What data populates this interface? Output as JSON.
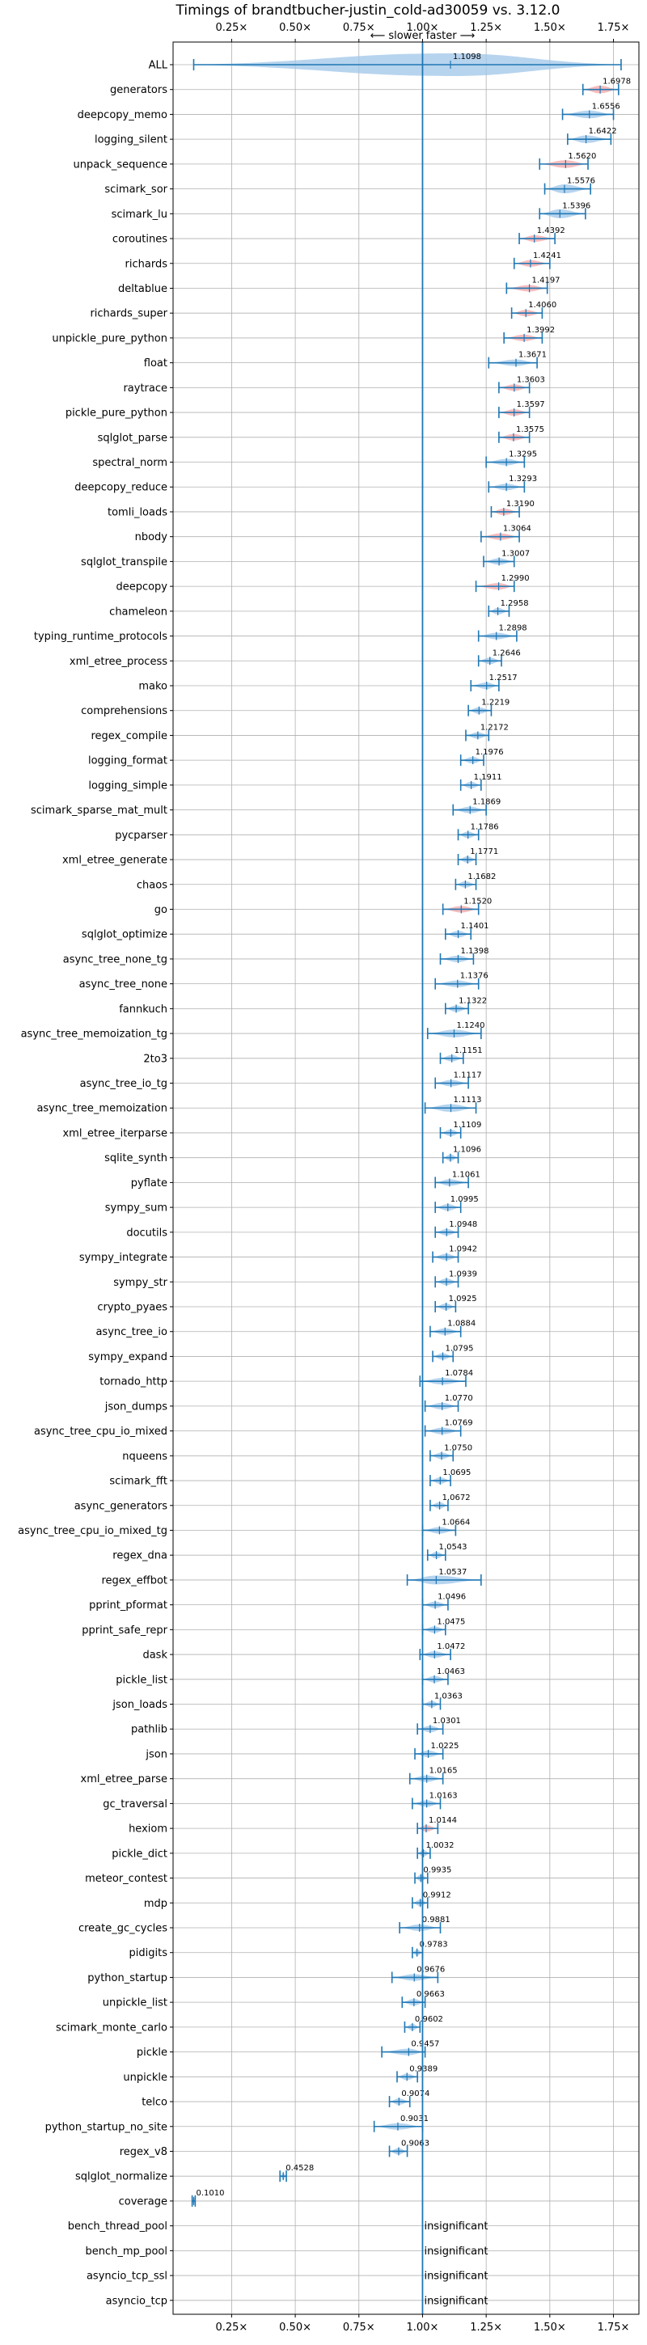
{
  "chart_data": {
    "type": "violin",
    "title": "Timings of brandtbucher-justin_cold-ad30059 vs. 3.12.0",
    "direction_label": "⟵ slower  faster ⟶",
    "x_ticks": [
      "0.25×",
      "0.50×",
      "0.75×",
      "1.00×",
      "1.25×",
      "1.50×",
      "1.75×"
    ],
    "x_tick_values": [
      0.25,
      0.5,
      0.75,
      1.0,
      1.25,
      1.5,
      1.75
    ],
    "xlim": [
      0.02,
      1.85
    ],
    "reference_line": 1.0,
    "grid": true,
    "colors": {
      "faster": "#9fc5e8",
      "slower": "#f4a6a6",
      "line": "#1f77b4"
    },
    "insignificant_label": "insignificant",
    "benchmarks": [
      {
        "name": "ALL",
        "value": 1.1098,
        "label": "1.1098",
        "color": "faster",
        "min": 0.101,
        "max": 1.78,
        "width": 0.18
      },
      {
        "name": "generators",
        "value": 1.6978,
        "label": "1.6978",
        "color": "slower",
        "min": 1.63,
        "max": 1.77,
        "width": 0.06
      },
      {
        "name": "deepcopy_memo",
        "value": 1.6556,
        "label": "1.6556",
        "color": "faster",
        "min": 1.55,
        "max": 1.75,
        "width": 0.06
      },
      {
        "name": "logging_silent",
        "value": 1.6422,
        "label": "1.6422",
        "color": "faster",
        "min": 1.57,
        "max": 1.74,
        "width": 0.06
      },
      {
        "name": "unpack_sequence",
        "value": 1.562,
        "label": "1.5620",
        "color": "slower",
        "min": 1.46,
        "max": 1.65,
        "width": 0.06
      },
      {
        "name": "scimark_sor",
        "value": 1.5576,
        "label": "1.5576",
        "color": "faster",
        "min": 1.48,
        "max": 1.66,
        "width": 0.07
      },
      {
        "name": "scimark_lu",
        "value": 1.5396,
        "label": "1.5396",
        "color": "faster",
        "min": 1.46,
        "max": 1.64,
        "width": 0.07
      },
      {
        "name": "coroutines",
        "value": 1.4392,
        "label": "1.4392",
        "color": "slower",
        "min": 1.38,
        "max": 1.52,
        "width": 0.05
      },
      {
        "name": "richards",
        "value": 1.4241,
        "label": "1.4241",
        "color": "slower",
        "min": 1.36,
        "max": 1.5,
        "width": 0.05
      },
      {
        "name": "deltablue",
        "value": 1.4197,
        "label": "1.4197",
        "color": "slower",
        "min": 1.33,
        "max": 1.49,
        "width": 0.05
      },
      {
        "name": "richards_super",
        "value": 1.406,
        "label": "1.4060",
        "color": "slower",
        "min": 1.35,
        "max": 1.47,
        "width": 0.05
      },
      {
        "name": "unpickle_pure_python",
        "value": 1.3992,
        "label": "1.3992",
        "color": "slower",
        "min": 1.32,
        "max": 1.47,
        "width": 0.05
      },
      {
        "name": "float",
        "value": 1.3671,
        "label": "1.3671",
        "color": "faster",
        "min": 1.26,
        "max": 1.45,
        "width": 0.05
      },
      {
        "name": "raytrace",
        "value": 1.3603,
        "label": "1.3603",
        "color": "slower",
        "min": 1.3,
        "max": 1.42,
        "width": 0.04
      },
      {
        "name": "pickle_pure_python",
        "value": 1.3597,
        "label": "1.3597",
        "color": "slower",
        "min": 1.3,
        "max": 1.42,
        "width": 0.04
      },
      {
        "name": "sqlglot_parse",
        "value": 1.3575,
        "label": "1.3575",
        "color": "slower",
        "min": 1.3,
        "max": 1.42,
        "width": 0.04
      },
      {
        "name": "spectral_norm",
        "value": 1.3295,
        "label": "1.3295",
        "color": "faster",
        "min": 1.25,
        "max": 1.4,
        "width": 0.05
      },
      {
        "name": "deepcopy_reduce",
        "value": 1.3293,
        "label": "1.3293",
        "color": "faster",
        "min": 1.26,
        "max": 1.4,
        "width": 0.04
      },
      {
        "name": "tomli_loads",
        "value": 1.319,
        "label": "1.3190",
        "color": "slower",
        "min": 1.27,
        "max": 1.38,
        "width": 0.04
      },
      {
        "name": "nbody",
        "value": 1.3064,
        "label": "1.3064",
        "color": "slower",
        "min": 1.23,
        "max": 1.38,
        "width": 0.05
      },
      {
        "name": "sqlglot_transpile",
        "value": 1.3007,
        "label": "1.3007",
        "color": "faster",
        "min": 1.24,
        "max": 1.36,
        "width": 0.04
      },
      {
        "name": "deepcopy",
        "value": 1.299,
        "label": "1.2990",
        "color": "slower",
        "min": 1.21,
        "max": 1.36,
        "width": 0.04
      },
      {
        "name": "chameleon",
        "value": 1.2958,
        "label": "1.2958",
        "color": "faster",
        "min": 1.26,
        "max": 1.34,
        "width": 0.04
      },
      {
        "name": "typing_runtime_protocols",
        "value": 1.2898,
        "label": "1.2898",
        "color": "faster",
        "min": 1.22,
        "max": 1.37,
        "width": 0.04
      },
      {
        "name": "xml_etree_process",
        "value": 1.2646,
        "label": "1.2646",
        "color": "faster",
        "min": 1.22,
        "max": 1.31,
        "width": 0.04
      },
      {
        "name": "mako",
        "value": 1.2517,
        "label": "1.2517",
        "color": "faster",
        "min": 1.19,
        "max": 1.3,
        "width": 0.04
      },
      {
        "name": "comprehensions",
        "value": 1.2219,
        "label": "1.2219",
        "color": "faster",
        "min": 1.18,
        "max": 1.27,
        "width": 0.04
      },
      {
        "name": "regex_compile",
        "value": 1.2172,
        "label": "1.2172",
        "color": "faster",
        "min": 1.17,
        "max": 1.26,
        "width": 0.04
      },
      {
        "name": "logging_format",
        "value": 1.1976,
        "label": "1.1976",
        "color": "faster",
        "min": 1.15,
        "max": 1.24,
        "width": 0.04
      },
      {
        "name": "logging_simple",
        "value": 1.1911,
        "label": "1.1911",
        "color": "faster",
        "min": 1.15,
        "max": 1.23,
        "width": 0.04
      },
      {
        "name": "scimark_sparse_mat_mult",
        "value": 1.1869,
        "label": "1.1869",
        "color": "faster",
        "min": 1.12,
        "max": 1.25,
        "width": 0.04
      },
      {
        "name": "pycparser",
        "value": 1.1786,
        "label": "1.1786",
        "color": "faster",
        "min": 1.14,
        "max": 1.22,
        "width": 0.04
      },
      {
        "name": "xml_etree_generate",
        "value": 1.1771,
        "label": "1.1771",
        "color": "faster",
        "min": 1.14,
        "max": 1.21,
        "width": 0.04
      },
      {
        "name": "chaos",
        "value": 1.1682,
        "label": "1.1682",
        "color": "faster",
        "min": 1.13,
        "max": 1.21,
        "width": 0.04
      },
      {
        "name": "go",
        "value": 1.152,
        "label": "1.1520",
        "color": "slower",
        "min": 1.08,
        "max": 1.22,
        "width": 0.04
      },
      {
        "name": "sqlglot_optimize",
        "value": 1.1401,
        "label": "1.1401",
        "color": "faster",
        "min": 1.09,
        "max": 1.19,
        "width": 0.04
      },
      {
        "name": "async_tree_none_tg",
        "value": 1.1398,
        "label": "1.1398",
        "color": "faster",
        "min": 1.07,
        "max": 1.2,
        "width": 0.04
      },
      {
        "name": "async_tree_none",
        "value": 1.1376,
        "label": "1.1376",
        "color": "faster",
        "min": 1.05,
        "max": 1.22,
        "width": 0.04
      },
      {
        "name": "fannkuch",
        "value": 1.1322,
        "label": "1.1322",
        "color": "faster",
        "min": 1.09,
        "max": 1.18,
        "width": 0.04
      },
      {
        "name": "async_tree_memoization_tg",
        "value": 1.124,
        "label": "1.1240",
        "color": "faster",
        "min": 1.02,
        "max": 1.23,
        "width": 0.06
      },
      {
        "name": "2to3",
        "value": 1.1151,
        "label": "1.1151",
        "color": "faster",
        "min": 1.07,
        "max": 1.16,
        "width": 0.04
      },
      {
        "name": "async_tree_io_tg",
        "value": 1.1117,
        "label": "1.1117",
        "color": "faster",
        "min": 1.05,
        "max": 1.18,
        "width": 0.04
      },
      {
        "name": "async_tree_memoization",
        "value": 1.1113,
        "label": "1.1113",
        "color": "faster",
        "min": 1.01,
        "max": 1.21,
        "width": 0.06
      },
      {
        "name": "xml_etree_iterparse",
        "value": 1.1109,
        "label": "1.1109",
        "color": "faster",
        "min": 1.07,
        "max": 1.15,
        "width": 0.04
      },
      {
        "name": "sqlite_synth",
        "value": 1.1096,
        "label": "1.1096",
        "color": "faster",
        "min": 1.08,
        "max": 1.14,
        "width": 0.03
      },
      {
        "name": "pyflate",
        "value": 1.1061,
        "label": "1.1061",
        "color": "faster",
        "min": 1.05,
        "max": 1.18,
        "width": 0.04
      },
      {
        "name": "sympy_sum",
        "value": 1.0995,
        "label": "1.0995",
        "color": "faster",
        "min": 1.05,
        "max": 1.15,
        "width": 0.04
      },
      {
        "name": "docutils",
        "value": 1.0948,
        "label": "1.0948",
        "color": "faster",
        "min": 1.05,
        "max": 1.14,
        "width": 0.04
      },
      {
        "name": "sympy_integrate",
        "value": 1.0942,
        "label": "1.0942",
        "color": "faster",
        "min": 1.04,
        "max": 1.14,
        "width": 0.04
      },
      {
        "name": "sympy_str",
        "value": 1.0939,
        "label": "1.0939",
        "color": "faster",
        "min": 1.05,
        "max": 1.14,
        "width": 0.04
      },
      {
        "name": "crypto_pyaes",
        "value": 1.0925,
        "label": "1.0925",
        "color": "faster",
        "min": 1.05,
        "max": 1.13,
        "width": 0.03
      },
      {
        "name": "async_tree_io",
        "value": 1.0884,
        "label": "1.0884",
        "color": "faster",
        "min": 1.03,
        "max": 1.15,
        "width": 0.04
      },
      {
        "name": "sympy_expand",
        "value": 1.0795,
        "label": "1.0795",
        "color": "faster",
        "min": 1.04,
        "max": 1.12,
        "width": 0.04
      },
      {
        "name": "tornado_http",
        "value": 1.0784,
        "label": "1.0784",
        "color": "faster",
        "min": 0.99,
        "max": 1.17,
        "width": 0.05
      },
      {
        "name": "json_dumps",
        "value": 1.077,
        "label": "1.0770",
        "color": "faster",
        "min": 1.01,
        "max": 1.14,
        "width": 0.04
      },
      {
        "name": "async_tree_cpu_io_mixed",
        "value": 1.0769,
        "label": "1.0769",
        "color": "faster",
        "min": 1.01,
        "max": 1.15,
        "width": 0.04
      },
      {
        "name": "nqueens",
        "value": 1.075,
        "label": "1.0750",
        "color": "faster",
        "min": 1.03,
        "max": 1.12,
        "width": 0.04
      },
      {
        "name": "scimark_fft",
        "value": 1.0695,
        "label": "1.0695",
        "color": "faster",
        "min": 1.03,
        "max": 1.11,
        "width": 0.04
      },
      {
        "name": "async_generators",
        "value": 1.0672,
        "label": "1.0672",
        "color": "faster",
        "min": 1.03,
        "max": 1.1,
        "width": 0.04
      },
      {
        "name": "async_tree_cpu_io_mixed_tg",
        "value": 1.0664,
        "label": "1.0664",
        "color": "faster",
        "min": 1.0,
        "max": 1.13,
        "width": 0.04
      },
      {
        "name": "regex_dna",
        "value": 1.0543,
        "label": "1.0543",
        "color": "faster",
        "min": 1.02,
        "max": 1.09,
        "width": 0.03
      },
      {
        "name": "regex_effbot",
        "value": 1.0537,
        "label": "1.0537",
        "color": "faster",
        "min": 0.94,
        "max": 1.23,
        "width": 0.07
      },
      {
        "name": "pprint_pformat",
        "value": 1.0496,
        "label": "1.0496",
        "color": "faster",
        "min": 1.0,
        "max": 1.1,
        "width": 0.04
      },
      {
        "name": "pprint_safe_repr",
        "value": 1.0475,
        "label": "1.0475",
        "color": "faster",
        "min": 1.0,
        "max": 1.09,
        "width": 0.04
      },
      {
        "name": "dask",
        "value": 1.0472,
        "label": "1.0472",
        "color": "faster",
        "min": 0.99,
        "max": 1.11,
        "width": 0.04
      },
      {
        "name": "pickle_list",
        "value": 1.0463,
        "label": "1.0463",
        "color": "faster",
        "min": 1.0,
        "max": 1.1,
        "width": 0.04
      },
      {
        "name": "json_loads",
        "value": 1.0363,
        "label": "1.0363",
        "color": "faster",
        "min": 1.0,
        "max": 1.07,
        "width": 0.03
      },
      {
        "name": "pathlib",
        "value": 1.0301,
        "label": "1.0301",
        "color": "faster",
        "min": 0.98,
        "max": 1.08,
        "width": 0.04
      },
      {
        "name": "json",
        "value": 1.0225,
        "label": "1.0225",
        "color": "faster",
        "min": 0.97,
        "max": 1.08,
        "width": 0.04
      },
      {
        "name": "xml_etree_parse",
        "value": 1.0165,
        "label": "1.0165",
        "color": "faster",
        "min": 0.95,
        "max": 1.08,
        "width": 0.04
      },
      {
        "name": "gc_traversal",
        "value": 1.0163,
        "label": "1.0163",
        "color": "faster",
        "min": 0.96,
        "max": 1.07,
        "width": 0.04
      },
      {
        "name": "hexiom",
        "value": 1.0144,
        "label": "1.0144",
        "color": "slower",
        "min": 0.98,
        "max": 1.06,
        "width": 0.03
      },
      {
        "name": "pickle_dict",
        "value": 1.0032,
        "label": "1.0032",
        "color": "faster",
        "min": 0.98,
        "max": 1.03,
        "width": 0.03
      },
      {
        "name": "meteor_contest",
        "value": 0.9935,
        "label": "0.9935",
        "color": "faster",
        "min": 0.97,
        "max": 1.02,
        "width": 0.03
      },
      {
        "name": "mdp",
        "value": 0.9912,
        "label": "0.9912",
        "color": "faster",
        "min": 0.96,
        "max": 1.02,
        "width": 0.03
      },
      {
        "name": "create_gc_cycles",
        "value": 0.9881,
        "label": "0.9881",
        "color": "faster",
        "min": 0.91,
        "max": 1.07,
        "width": 0.05
      },
      {
        "name": "pidigits",
        "value": 0.9783,
        "label": "0.9783",
        "color": "faster",
        "min": 0.96,
        "max": 1.0,
        "width": 0.03
      },
      {
        "name": "python_startup",
        "value": 0.9676,
        "label": "0.9676",
        "color": "faster",
        "min": 0.88,
        "max": 1.06,
        "width": 0.05
      },
      {
        "name": "unpickle_list",
        "value": 0.9663,
        "label": "0.9663",
        "color": "faster",
        "min": 0.92,
        "max": 1.01,
        "width": 0.04
      },
      {
        "name": "scimark_monte_carlo",
        "value": 0.9602,
        "label": "0.9602",
        "color": "faster",
        "min": 0.93,
        "max": 0.99,
        "width": 0.03
      },
      {
        "name": "pickle",
        "value": 0.9457,
        "label": "0.9457",
        "color": "faster",
        "min": 0.84,
        "max": 1.01,
        "width": 0.05
      },
      {
        "name": "unpickle",
        "value": 0.9389,
        "label": "0.9389",
        "color": "faster",
        "min": 0.9,
        "max": 0.98,
        "width": 0.04
      },
      {
        "name": "telco",
        "value": 0.9074,
        "label": "0.9074",
        "color": "faster",
        "min": 0.87,
        "max": 0.95,
        "width": 0.03
      },
      {
        "name": "python_startup_no_site",
        "value": 0.9031,
        "label": "0.9031",
        "color": "faster",
        "min": 0.81,
        "max": 1.0,
        "width": 0.05
      },
      {
        "name": "regex_v8",
        "value": 0.9063,
        "label": "0.9063",
        "color": "faster",
        "min": 0.87,
        "max": 0.94,
        "width": 0.03
      },
      {
        "name": "sqlglot_normalize",
        "value": 0.4528,
        "label": "0.4528",
        "color": "faster",
        "min": 0.44,
        "max": 0.465,
        "width": 0.02
      },
      {
        "name": "coverage",
        "value": 0.101,
        "label": "0.1010",
        "color": "faster",
        "min": 0.095,
        "max": 0.107,
        "width": 0.01
      },
      {
        "name": "bench_thread_pool",
        "value": null,
        "label": "insignificant",
        "color": "none"
      },
      {
        "name": "bench_mp_pool",
        "value": null,
        "label": "insignificant",
        "color": "none"
      },
      {
        "name": "asyncio_tcp_ssl",
        "value": null,
        "label": "insignificant",
        "color": "none"
      },
      {
        "name": "asyncio_tcp",
        "value": null,
        "label": "insignificant",
        "color": "none"
      }
    ]
  }
}
